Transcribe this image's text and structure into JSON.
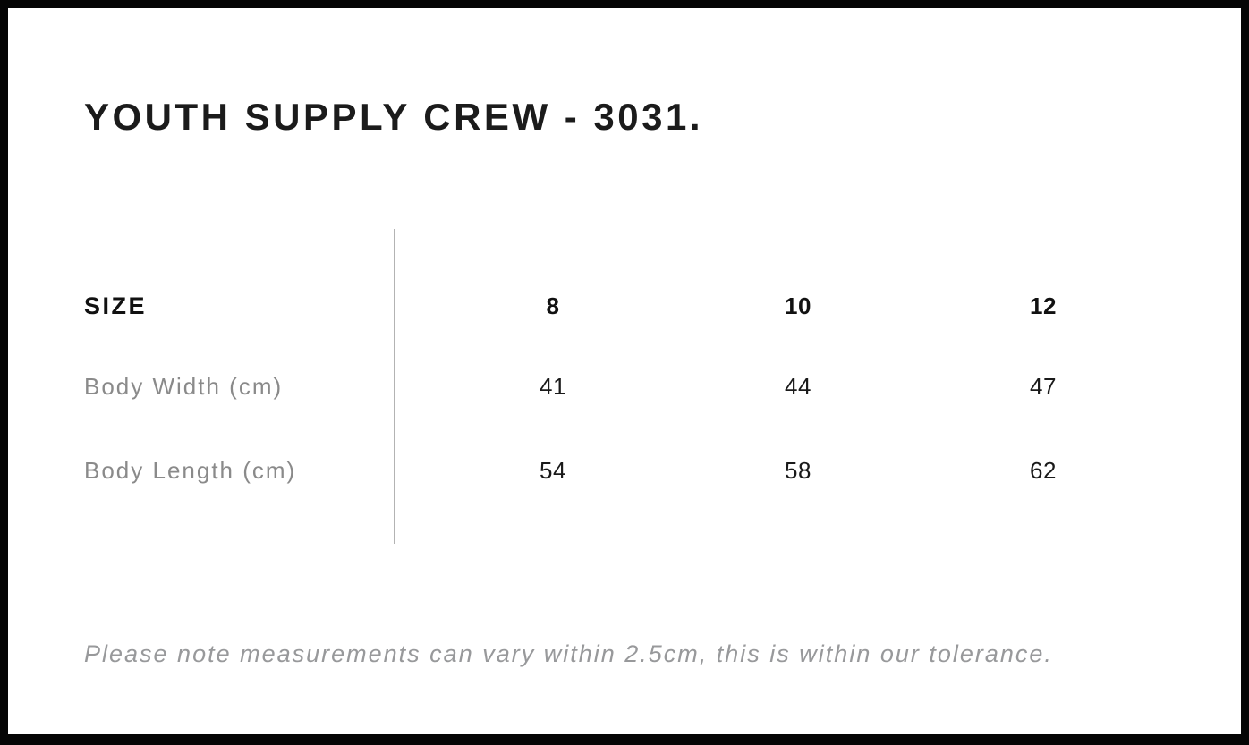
{
  "page": {
    "title": "YOUTH SUPPLY CREW - 3031.",
    "tolerance_note": "Please note measurements can vary within 2.5cm, this is within our tolerance."
  },
  "size_chart": {
    "header_label": "SIZE",
    "sizes": [
      "8",
      "10",
      "12"
    ],
    "rows": [
      {
        "label": "Body Width (cm)",
        "values": [
          "41",
          "44",
          "47"
        ]
      },
      {
        "label": "Body Length (cm)",
        "values": [
          "54",
          "58",
          "62"
        ]
      }
    ]
  },
  "colors": {
    "background": "#ffffff",
    "frame_border": "#050505",
    "heading_text": "#1b1b1b",
    "table_text": "#1a1a1a",
    "label_gray": "#8a8a8a",
    "note_gray": "#98999b",
    "divider_gray": "#b3b3b3"
  },
  "chart_data": {
    "type": "table",
    "title": "YOUTH SUPPLY CREW - 3031.",
    "columns": [
      "SIZE",
      "8",
      "10",
      "12"
    ],
    "rows": [
      {
        "label": "Body Width (cm)",
        "values": [
          41,
          44,
          47
        ]
      },
      {
        "label": "Body Length (cm)",
        "values": [
          54,
          58,
          62
        ]
      }
    ],
    "units": "cm",
    "note": "Please note measurements can vary within 2.5cm, this is within our tolerance."
  }
}
